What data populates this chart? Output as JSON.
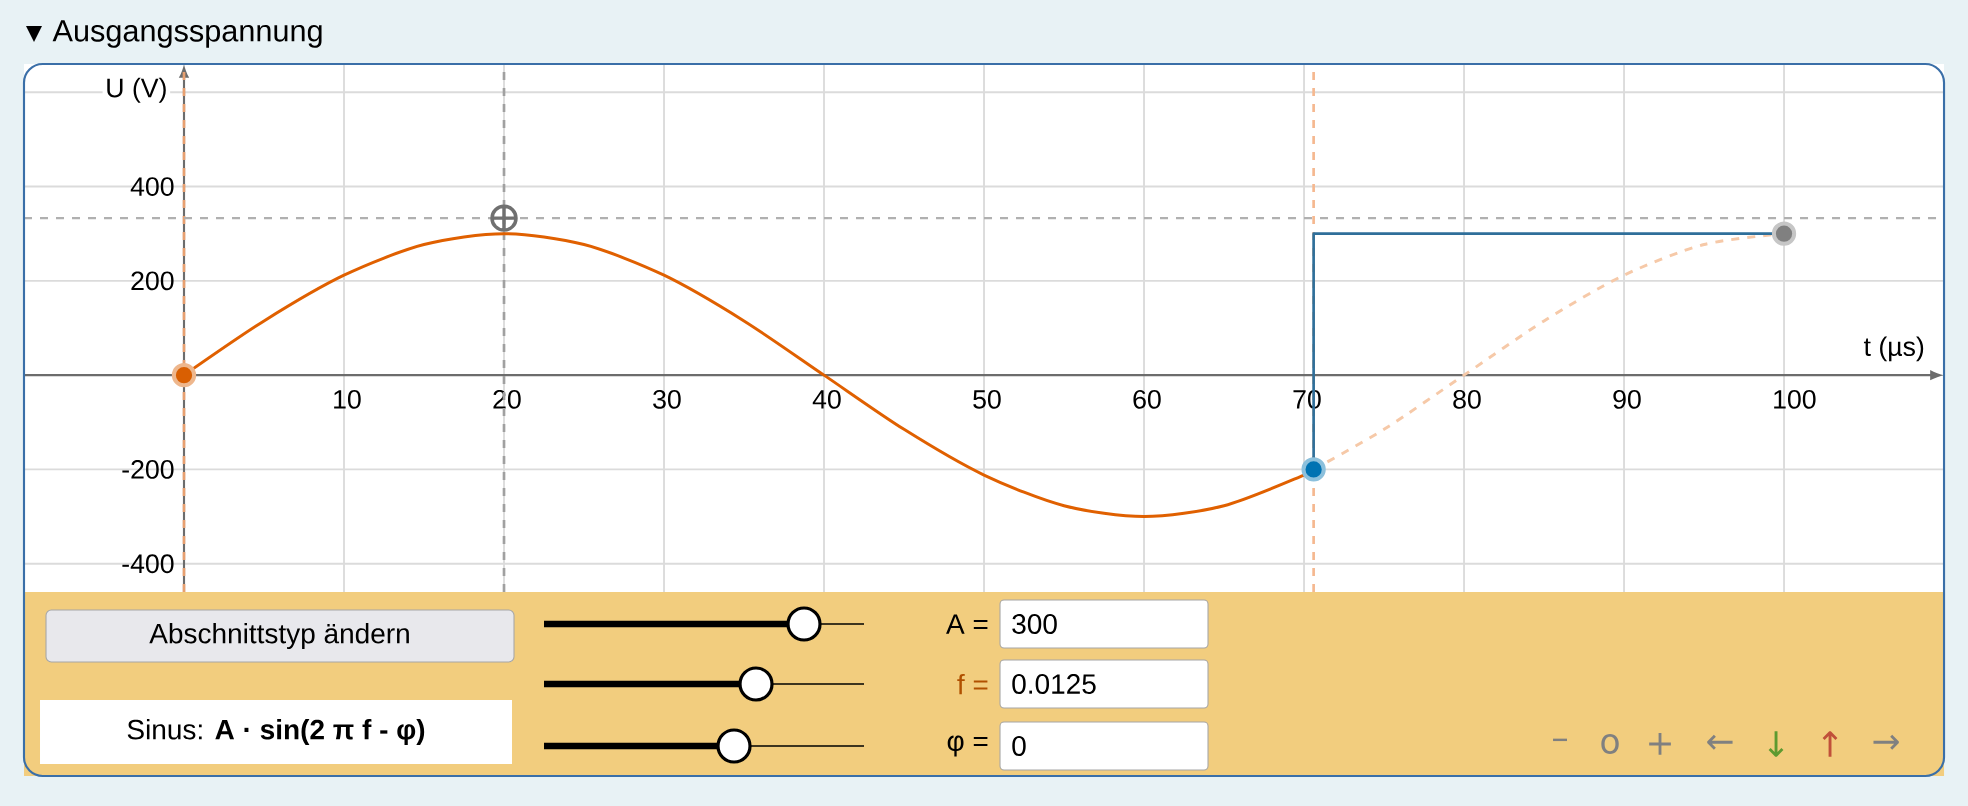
{
  "chart_data": {
    "type": "line",
    "title": "Ausgangsspannung",
    "xlabel": "t (µs)",
    "ylabel": "U (V)",
    "xlim": [
      -10,
      110
    ],
    "ylim": [
      -460,
      660
    ],
    "xticks": [
      10,
      20,
      30,
      40,
      50,
      60,
      70,
      80,
      90,
      100
    ],
    "yticks": [
      -400,
      -200,
      200,
      400,
      {
        "value": 600,
        "label": null
      }
    ],
    "grid": true,
    "series": [
      {
        "color": "#e06000",
        "x": [
          0,
          5,
          10,
          15,
          20,
          25,
          30,
          35,
          40,
          45,
          50,
          55,
          60,
          65,
          70,
          70.6
        ],
        "values": [
          0,
          115,
          212,
          277,
          300,
          277,
          212,
          115,
          0,
          -115,
          -212,
          -277,
          -300,
          -277,
          -212,
          -200
        ]
      },
      {
        "type": "line",
        "color": "#f6c9a8",
        "line_style": "dashed",
        "x": [
          70.6,
          75,
          80,
          85,
          90,
          95,
          100
        ],
        "values": [
          -200,
          -115,
          0,
          115,
          212,
          277,
          300
        ]
      },
      {
        "type": "step",
        "color": "#2f6f9a",
        "x": [
          70.6,
          70.6,
          100
        ],
        "values": [
          -200,
          300,
          300
        ]
      },
      {
        "type": "scatter",
        "marker": "circle",
        "color": "#d95f02",
        "x": [
          0
        ],
        "values": [
          0
        ]
      },
      {
        "type": "scatter",
        "marker": "circle",
        "color": "#0072b2",
        "x": [
          70.6
        ],
        "values": [
          -200
        ]
      },
      {
        "type": "scatter",
        "marker": "circle",
        "color": "#808080",
        "x": [
          100
        ],
        "values": [
          300
        ]
      },
      {
        "type": "scatter",
        "marker": "cross",
        "color": "#707070",
        "x": [
          20
        ],
        "values": [
          333
        ]
      }
    ],
    "ref_lines": [
      {
        "axis": "x",
        "value": 0,
        "color": "#e8a070",
        "line_style": "dashed"
      },
      {
        "axis": "x",
        "value": 20,
        "color": "#a0a0a0",
        "line_style": "dashed"
      },
      {
        "axis": "x",
        "value": 70.6,
        "color": "#f5b890",
        "line_style": "dashed"
      },
      {
        "axis": "y",
        "value": 333,
        "color": "#b0b0b0",
        "line_style": "dashed"
      }
    ],
    "annotations": [
      "Abschnittstyp ändern",
      "Sinus:  **A · sin(2 π f - φ)**",
      "A =",
      "300",
      "f =",
      "0.0125",
      "φ =",
      "0",
      "–",
      "o",
      "+",
      "←",
      "↓",
      "↑",
      "→"
    ]
  }
}
